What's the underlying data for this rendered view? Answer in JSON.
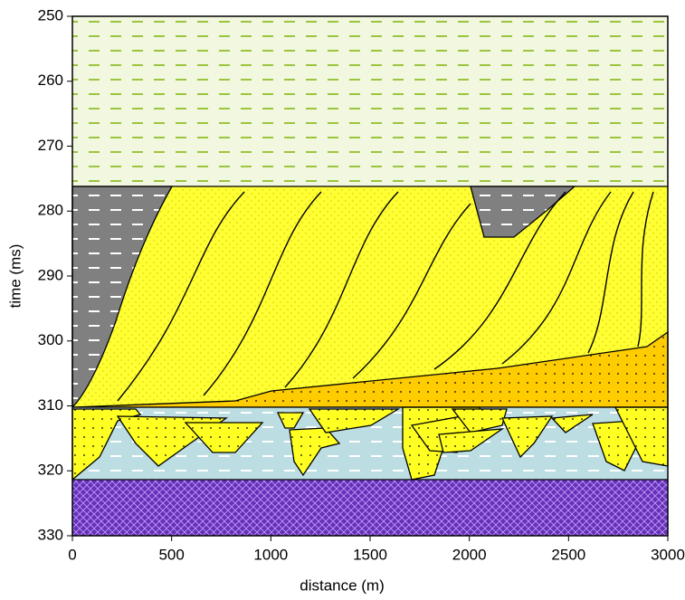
{
  "chart_data": {
    "type": "cross-section",
    "xlabel": "distance (m)",
    "ylabel": "time (ms)",
    "xlim": [
      0,
      3000
    ],
    "xticks": [
      0,
      500,
      1000,
      1500,
      2000,
      2500,
      3000
    ],
    "ylim": [
      250,
      330
    ],
    "yticks": [
      250,
      260,
      270,
      280,
      290,
      300,
      310,
      320,
      330
    ]
  }
}
